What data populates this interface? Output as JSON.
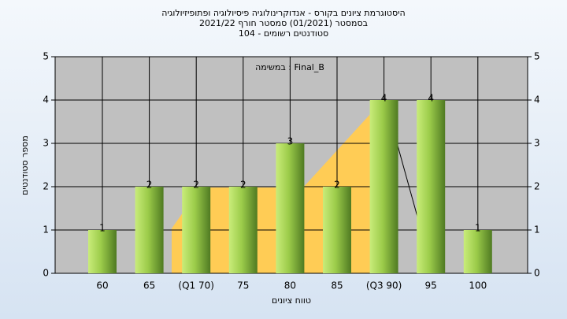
{
  "chart_data": {
    "type": "bar",
    "title": [
      "היסטוגרמת ציונים בקורס - אנדוקרינולוגיה פיסיולוגיה ופתופיזיולוגיה",
      "בסמסטר  (01/2021)  סמסטר חורף  2021/22",
      "סטודנטים רשומים - 104"
    ],
    "legend_text": "במשימה : Final_B",
    "x_label": "טווח ציונים",
    "y_label": "מספר סטודנטים",
    "categories": [
      "60",
      "65",
      "(Q1 70)",
      "75",
      "80",
      "85",
      "(Q3 90)",
      "95",
      "100"
    ],
    "values": [
      1,
      2,
      2,
      2,
      3,
      2,
      4,
      4,
      1
    ],
    "color": "#9ccc4a",
    "ylim": [
      0,
      5
    ],
    "yticks": [
      0,
      1,
      2,
      3,
      4,
      5
    ],
    "y2lim": [
      0,
      5
    ],
    "y2ticks": [
      0,
      1,
      2,
      3,
      4,
      5
    ],
    "grid": true
  }
}
